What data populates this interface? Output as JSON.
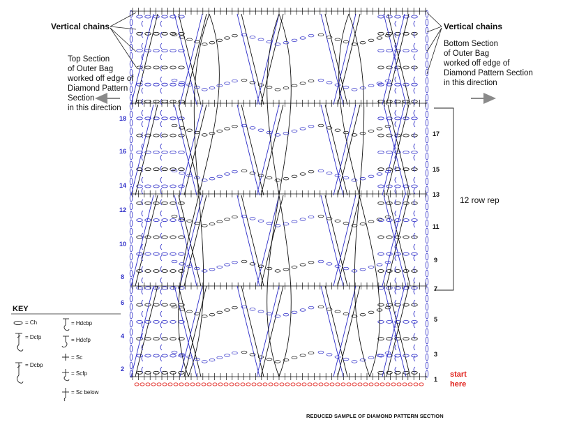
{
  "labels": {
    "vertical_chains_left": "Vertical chains",
    "vertical_chains_right": "Vertical chains",
    "top_section": [
      "Top Section",
      "of Outer Bag",
      "worked off edge of",
      "Diamond Pattern",
      "Section",
      "in this direction"
    ],
    "bottom_section": [
      "Bottom Section",
      "of Outer Bag",
      "worked off edge of",
      "Diamond Pattern Section",
      "in this direction"
    ],
    "repeat": "12 row rep",
    "start": [
      "start",
      "here"
    ],
    "caption": "REDUCED SAMPLE OF DIAMOND PATTERN SECTION"
  },
  "rows_left": [
    "2",
    "4",
    "6",
    "8",
    "10",
    "12",
    "14",
    "16",
    "18"
  ],
  "rows_right": [
    "1",
    "3",
    "5",
    "7",
    "9",
    "11",
    "13",
    "15",
    "17"
  ],
  "key": {
    "title": "KEY",
    "items": [
      {
        "symbol": "chain-oval",
        "label": "= Ch"
      },
      {
        "symbol": "dcfp",
        "label": "= Dcfp"
      },
      {
        "symbol": "dcbp",
        "label": "= Dcbp"
      },
      {
        "symbol": "hdcbp",
        "label": "= Hdcbp"
      },
      {
        "symbol": "hdcfp",
        "label": "= Hdcfp"
      },
      {
        "symbol": "sc-cross",
        "label": "= Sc"
      },
      {
        "symbol": "scfp",
        "label": "= Scfp"
      },
      {
        "symbol": "sc-below",
        "label": "= Sc below"
      }
    ]
  },
  "colors": {
    "blue": "#2d2dc8",
    "black": "#111111",
    "red": "#e0201a",
    "gray": "#8a8a8a"
  }
}
